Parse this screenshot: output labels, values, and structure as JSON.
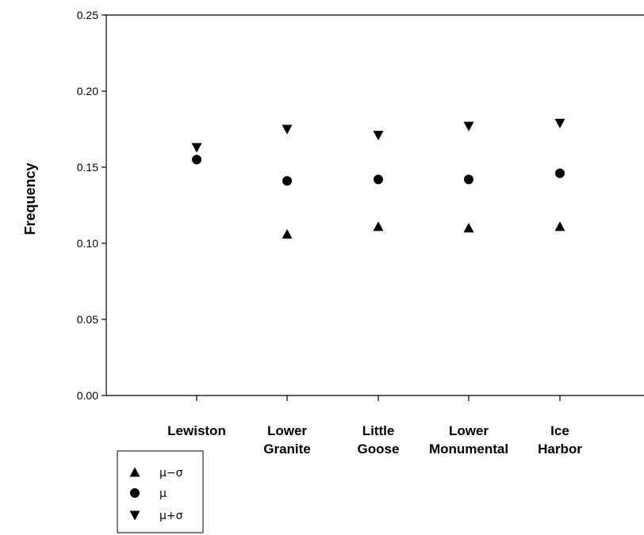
{
  "chart_data": {
    "type": "scatter",
    "title": "",
    "xlabel": "",
    "ylabel": "Frequency",
    "ylim": [
      0,
      0.25
    ],
    "yticks": [
      "0.00",
      "0.05",
      "0.10",
      "0.15",
      "0.20",
      "0.25"
    ],
    "categories": [
      [
        "Lewiston"
      ],
      [
        "Lower",
        "Granite"
      ],
      [
        "Little",
        "Goose"
      ],
      [
        "Lower",
        "Monumental"
      ],
      [
        "Ice",
        "Harbor"
      ]
    ],
    "series": [
      {
        "name": "μ−σ",
        "marker": "triangle-up",
        "values": [
          null,
          0.106,
          0.111,
          0.11,
          0.111
        ]
      },
      {
        "name": "μ",
        "marker": "circle",
        "values": [
          0.155,
          0.141,
          0.142,
          0.142,
          0.146
        ]
      },
      {
        "name": "μ+σ",
        "marker": "triangle-down",
        "values": [
          0.163,
          0.175,
          0.171,
          0.177,
          0.179
        ]
      }
    ],
    "legend_position": "bottom-left",
    "grid": false,
    "marker_color": "#000000"
  }
}
